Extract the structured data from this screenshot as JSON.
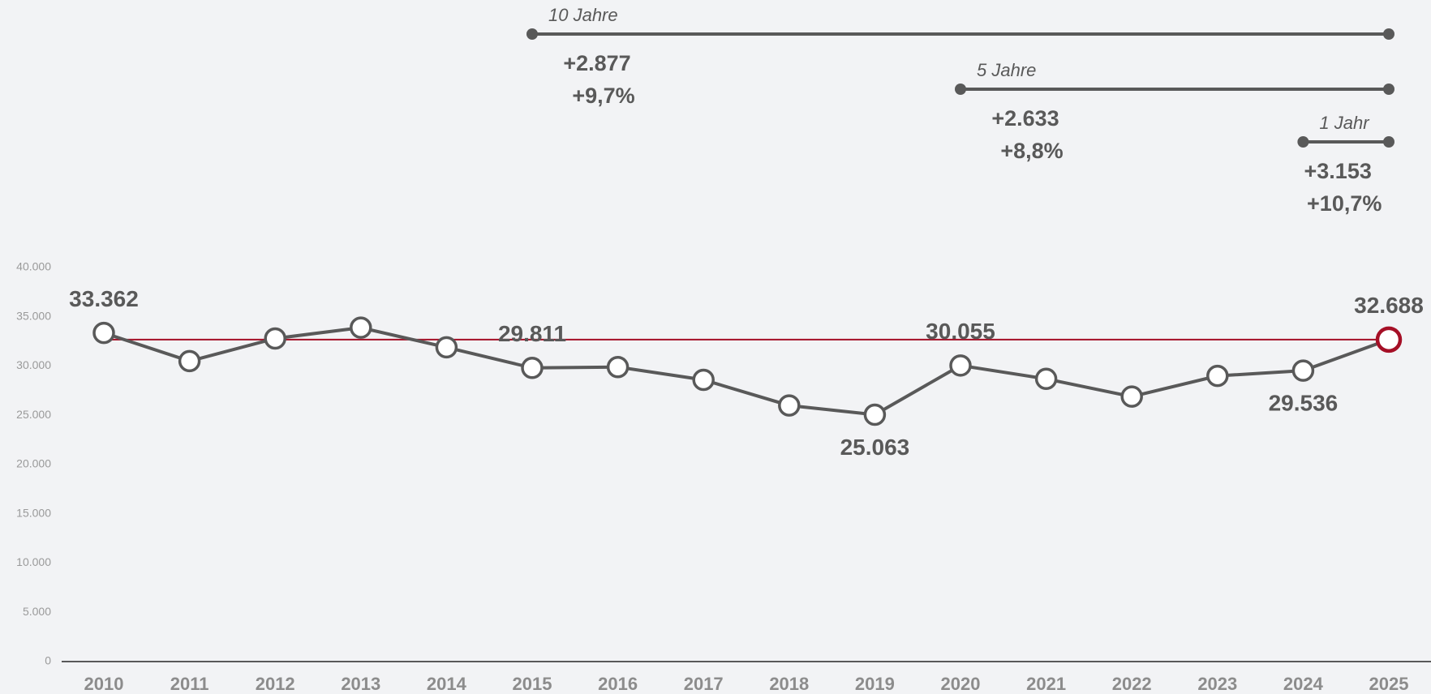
{
  "chart_data": {
    "type": "line",
    "categories": [
      "2010",
      "2011",
      "2012",
      "2013",
      "2014",
      "2015",
      "2016",
      "2017",
      "2018",
      "2019",
      "2020",
      "2021",
      "2022",
      "2023",
      "2024",
      "2025"
    ],
    "series": [
      {
        "color": "#595959",
        "highlight_color": "#a50f26",
        "values": [
          33362,
          30500,
          32800,
          33900,
          31900,
          29811,
          29900,
          28600,
          26000,
          25063,
          30055,
          28700,
          26900,
          29000,
          29536,
          32688
        ],
        "value_labels": [
          "33.362",
          null,
          null,
          null,
          null,
          "29.811",
          null,
          null,
          null,
          "25.063",
          "30.055",
          null,
          null,
          null,
          "29.536",
          "32.688"
        ]
      }
    ],
    "ylim": [
      0,
      40000
    ],
    "yticks": [
      0,
      {
        "value": 5000,
        "label": "5.000"
      },
      {
        "value": 10000,
        "label": "10.000"
      },
      {
        "value": 15000,
        "label": "15.000"
      },
      {
        "value": 20000,
        "label": "20.000"
      },
      {
        "value": 25000,
        "label": "25.000"
      },
      {
        "value": 30000,
        "label": "30.000"
      },
      {
        "value": 35000,
        "label": "35.000"
      },
      {
        "value": 40000,
        "label": "40.000"
      }
    ],
    "annotations": [
      {
        "label": "10 Jahre",
        "from": "2015",
        "to": "2025",
        "change": "+2.877",
        "percent": "+9,7%"
      },
      {
        "label": "5 Jahre",
        "from": "2020",
        "to": "2025",
        "change": "+2.633",
        "percent": "+8,8%"
      },
      {
        "label": "1 Jahr",
        "from": "2024",
        "to": "2025",
        "change": "+3.153",
        "percent": "+10,7%"
      }
    ]
  }
}
